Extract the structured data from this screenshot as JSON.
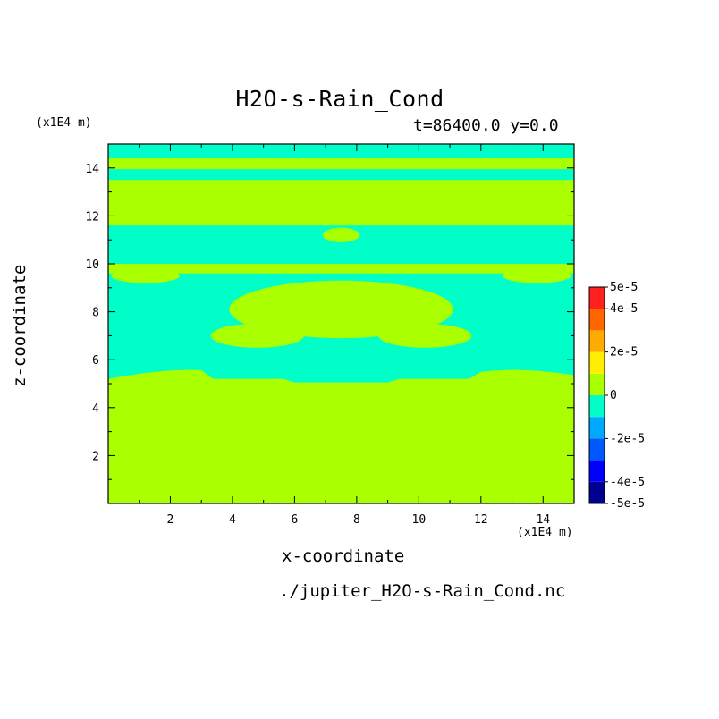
{
  "chart_data": {
    "type": "heatmap",
    "title": "H2O-s-Rain_Cond",
    "subtitle": "t=86400.0 y=0.0",
    "xlabel": "x-coordinate",
    "ylabel": "z-coordinate",
    "x_unit": "(x1E4 m)",
    "y_unit": "(x1E4 m)",
    "source_file": "./jupiter_H2O-s-Rain_Cond.nc",
    "xlim": [
      0,
      15
    ],
    "ylim": [
      0,
      15
    ],
    "x_ticks": [
      2,
      4,
      6,
      8,
      10,
      12,
      14
    ],
    "y_ticks": [
      2,
      4,
      6,
      8,
      10,
      12,
      14
    ],
    "colorbar": {
      "levels": [
        -5e-05,
        -4e-05,
        -3e-05,
        -2e-05,
        -1e-05,
        0,
        1e-05,
        2e-05,
        3e-05,
        4e-05,
        5e-05
      ],
      "colors": [
        "#000090",
        "#0000ff",
        "#0058ff",
        "#00a8ff",
        "#00ffc8",
        "#aaff00",
        "#ffee00",
        "#ffaa00",
        "#ff6600",
        "#ff2020"
      ],
      "tick_labels": [
        "5e-5",
        "4e-5",
        "2e-5",
        "0",
        "-2e-5",
        "-4e-5",
        "-5e-5"
      ],
      "tick_values": [
        5e-05,
        4e-05,
        2e-05,
        0,
        -2e-05,
        -4e-05,
        -5e-05
      ]
    },
    "field_description": "Values near zero: most of domain in 0..1e-5 band; layered regions in -1e-5..0 band at z≈5-7 and z≈9-12 and a thin layer near z≈14.5",
    "negative_regions": [
      {
        "z_range": [
          14.4,
          15.0
        ],
        "x_range": [
          0,
          15
        ]
      },
      {
        "z_range": [
          13.5,
          13.95
        ],
        "x_range": [
          0,
          15
        ]
      },
      {
        "z_range": [
          10.0,
          11.6
        ],
        "x_range": [
          0,
          15
        ]
      },
      {
        "z_range": [
          5.2,
          9.6
        ],
        "x_range": [
          0,
          15
        ]
      }
    ],
    "positive_regions_in_negative_bands": [
      {
        "x_center": 7.5,
        "z_center": 8.1,
        "x_halfwidth": 3.6,
        "z_halfwidth": 1.2
      },
      {
        "x_center": 4.8,
        "z_center": 7.0,
        "x_halfwidth": 1.5,
        "z_halfwidth": 0.5
      },
      {
        "x_center": 10.2,
        "z_center": 7.0,
        "x_halfwidth": 1.5,
        "z_halfwidth": 0.5
      },
      {
        "x_center": 1.2,
        "z_center": 9.5,
        "x_halfwidth": 1.1,
        "z_halfwidth": 0.3
      },
      {
        "x_center": 13.8,
        "z_center": 9.5,
        "x_halfwidth": 1.1,
        "z_halfwidth": 0.3
      },
      {
        "x_center": 7.5,
        "z_center": 11.2,
        "x_halfwidth": 0.6,
        "z_halfwidth": 0.3
      }
    ]
  }
}
